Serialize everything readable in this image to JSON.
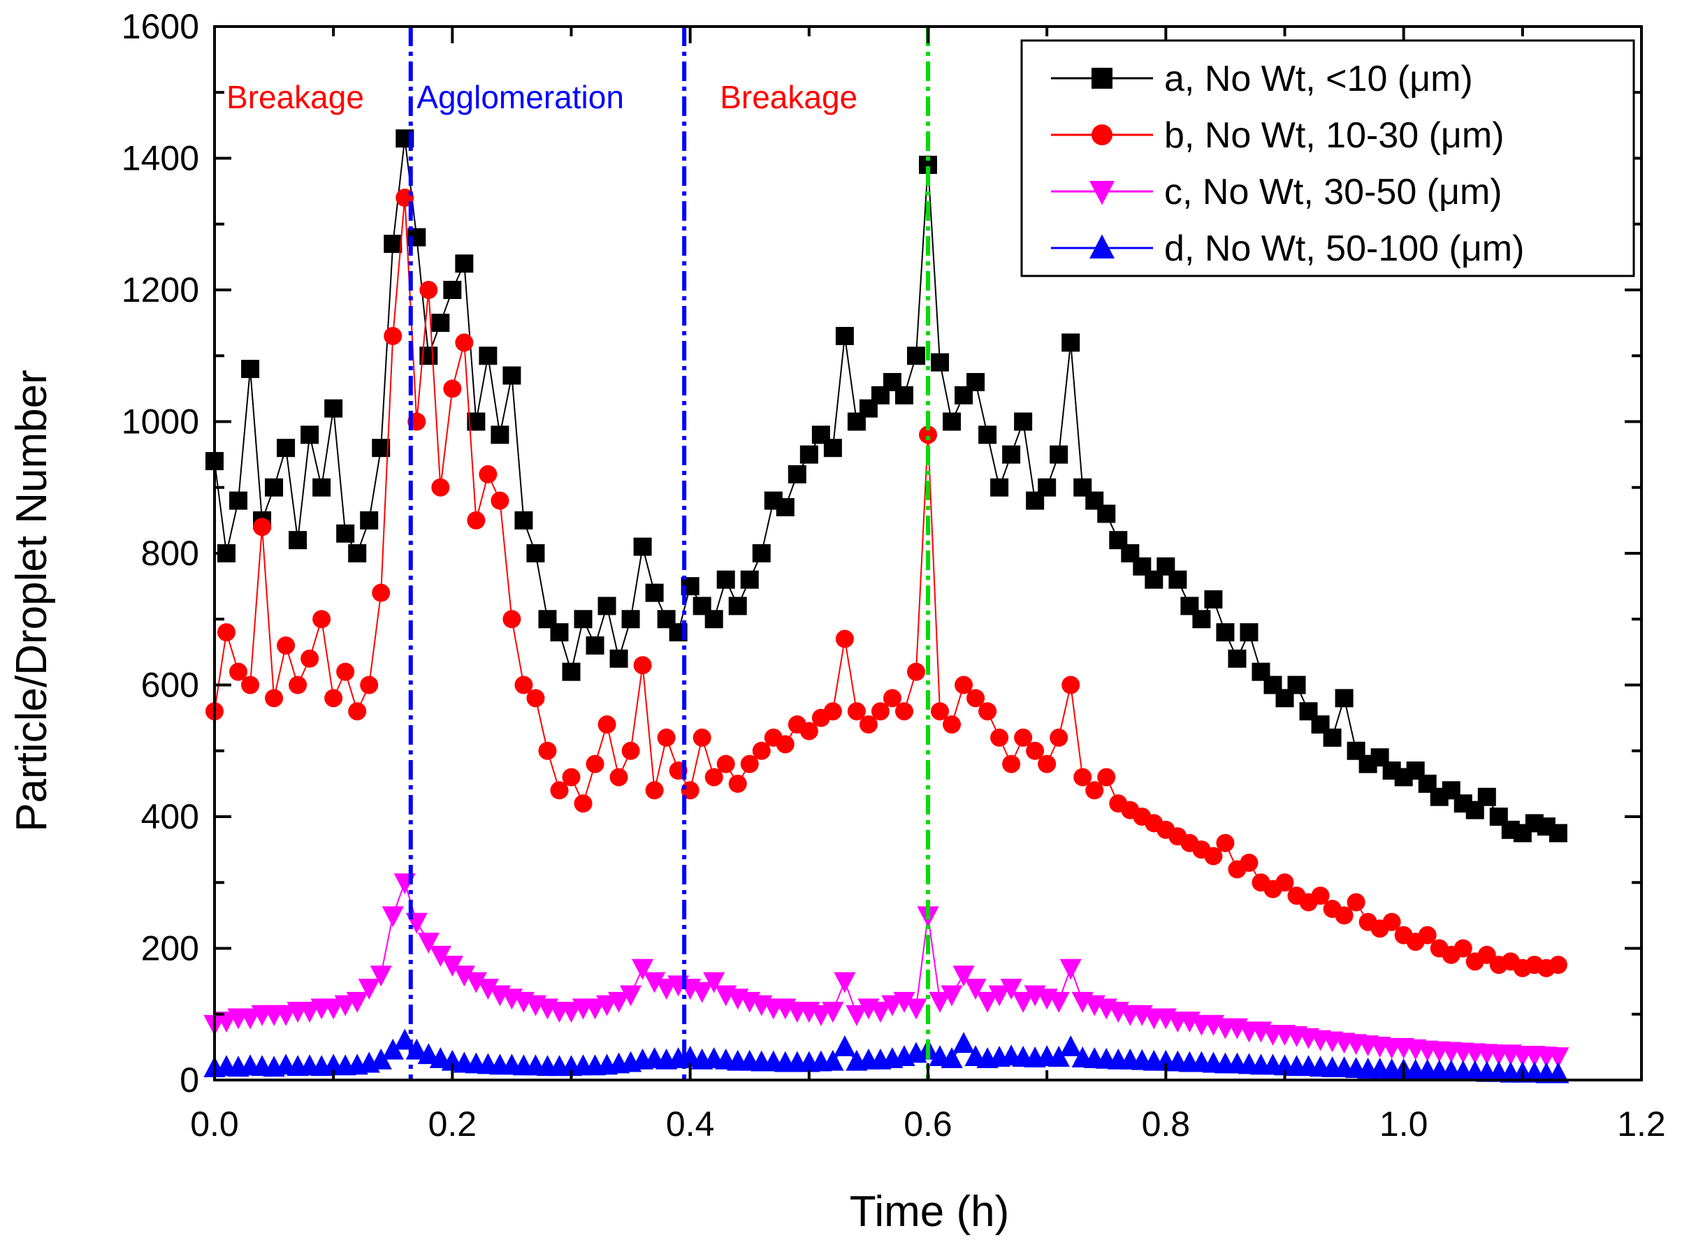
{
  "chart_data": {
    "type": "scatter",
    "title": "",
    "xlabel": "Time (h)",
    "ylabel": "Particle/Droplet Number",
    "xlim": [
      0,
      1.2
    ],
    "ylim": [
      0,
      1600
    ],
    "xticks": [
      "0.0",
      "0.2",
      "0.4",
      "0.6",
      "0.8",
      "1.0",
      "1.2"
    ],
    "yticks": [
      "0",
      "200",
      "400",
      "600",
      "800",
      "1000",
      "1200",
      "1400",
      "1600"
    ],
    "grid": false,
    "legend_position": "top-right",
    "x": {
      "start": 0,
      "step": 0.01
    },
    "series": [
      {
        "name": "a, No Wt, <10 (μm)",
        "color": "#000000",
        "marker": "square",
        "values": [
          940,
          800,
          880,
          1080,
          850,
          900,
          960,
          820,
          980,
          900,
          1020,
          830,
          800,
          850,
          960,
          1270,
          1430,
          1280,
          1100,
          1150,
          1200,
          1240,
          1000,
          1100,
          980,
          1070,
          850,
          800,
          700,
          680,
          620,
          700,
          660,
          720,
          640,
          700,
          810,
          740,
          700,
          680,
          750,
          720,
          700,
          760,
          720,
          760,
          800,
          880,
          870,
          920,
          950,
          980,
          960,
          1130,
          1000,
          1020,
          1040,
          1060,
          1040,
          1100,
          1390,
          1090,
          1000,
          1040,
          1060,
          980,
          900,
          950,
          1000,
          880,
          900,
          950,
          1120,
          900,
          880,
          860,
          820,
          800,
          780,
          760,
          780,
          760,
          720,
          700,
          730,
          680,
          640,
          680,
          620,
          600,
          580,
          600,
          560,
          540,
          520,
          580,
          500,
          480,
          490,
          470,
          460,
          470,
          450,
          430,
          440,
          420,
          410,
          430,
          400,
          380,
          375,
          390,
          385,
          375
        ]
      },
      {
        "name": "b, No Wt, 10-30 (μm)",
        "color": "#ff0000",
        "marker": "circle",
        "values": [
          560,
          680,
          620,
          600,
          840,
          580,
          660,
          600,
          640,
          700,
          580,
          620,
          560,
          600,
          740,
          1130,
          1340,
          1000,
          1200,
          900,
          1050,
          1120,
          850,
          920,
          880,
          700,
          600,
          580,
          500,
          440,
          460,
          420,
          480,
          540,
          460,
          500,
          630,
          440,
          520,
          470,
          440,
          520,
          460,
          480,
          450,
          480,
          500,
          520,
          510,
          540,
          530,
          550,
          560,
          670,
          560,
          540,
          560,
          580,
          560,
          620,
          980,
          560,
          540,
          600,
          580,
          560,
          520,
          480,
          520,
          500,
          480,
          520,
          600,
          460,
          440,
          460,
          420,
          410,
          400,
          390,
          380,
          370,
          360,
          350,
          340,
          360,
          320,
          330,
          300,
          290,
          300,
          280,
          270,
          280,
          260,
          250,
          270,
          240,
          230,
          240,
          220,
          210,
          220,
          200,
          190,
          200,
          180,
          190,
          175,
          180,
          170,
          175,
          170,
          175
        ]
      },
      {
        "name": "c, No Wt, 30-50 (μm)",
        "color": "#ff00ff",
        "marker": "triangle-down",
        "values": [
          85,
          90,
          95,
          95,
          100,
          100,
          100,
          105,
          105,
          110,
          110,
          115,
          120,
          140,
          160,
          250,
          300,
          240,
          210,
          190,
          175,
          160,
          150,
          140,
          130,
          125,
          120,
          115,
          110,
          105,
          105,
          110,
          110,
          115,
          120,
          130,
          170,
          150,
          140,
          145,
          140,
          135,
          150,
          130,
          125,
          120,
          115,
          110,
          110,
          105,
          105,
          100,
          105,
          150,
          100,
          110,
          105,
          115,
          120,
          110,
          250,
          120,
          130,
          160,
          140,
          120,
          130,
          140,
          120,
          130,
          125,
          120,
          170,
          120,
          115,
          110,
          105,
          100,
          100,
          95,
          95,
          90,
          90,
          85,
          85,
          80,
          80,
          75,
          75,
          70,
          70,
          68,
          65,
          62,
          60,
          58,
          56,
          54,
          52,
          50,
          50,
          48,
          46,
          45,
          44,
          43,
          42,
          41,
          40,
          40,
          38,
          38,
          37,
          36
        ]
      },
      {
        "name": "d, No Wt, 50-100 (μm)",
        "color": "#0000ff",
        "marker": "triangle-up",
        "values": [
          18,
          20,
          19,
          21,
          20,
          19,
          22,
          20,
          21,
          20,
          22,
          21,
          22,
          25,
          30,
          45,
          60,
          45,
          38,
          32,
          28,
          25,
          24,
          23,
          22,
          22,
          21,
          21,
          20,
          20,
          20,
          21,
          21,
          22,
          24,
          26,
          30,
          32,
          30,
          32,
          34,
          30,
          32,
          30,
          28,
          28,
          27,
          27,
          26,
          26,
          26,
          27,
          28,
          50,
          28,
          30,
          30,
          32,
          35,
          40,
          45,
          35,
          32,
          55,
          35,
          32,
          34,
          36,
          34,
          33,
          35,
          34,
          50,
          33,
          32,
          31,
          30,
          30,
          29,
          28,
          28,
          27,
          26,
          26,
          25,
          24,
          24,
          23,
          22,
          22,
          21,
          20,
          20,
          19,
          18,
          18,
          17,
          16,
          16,
          15,
          15,
          14,
          14,
          13,
          13,
          12,
          12,
          11,
          11,
          10,
          10,
          10,
          9,
          9
        ]
      }
    ],
    "vertical_lines": [
      {
        "x": 0.165,
        "color": "#0000ff",
        "style": "dash-dot"
      },
      {
        "x": 0.395,
        "color": "#0000ff",
        "style": "dash-dot"
      },
      {
        "x": 0.6,
        "color": "#00dd00",
        "style": "dash-dot"
      }
    ],
    "annotations": [
      {
        "text": "Breakage",
        "color": "#ff0000",
        "x": 0.01
      },
      {
        "text": "Agglomeration",
        "color": "#0000ff",
        "x": 0.17
      },
      {
        "text": "Breakage",
        "color": "#ff0000",
        "x": 0.425
      }
    ]
  }
}
